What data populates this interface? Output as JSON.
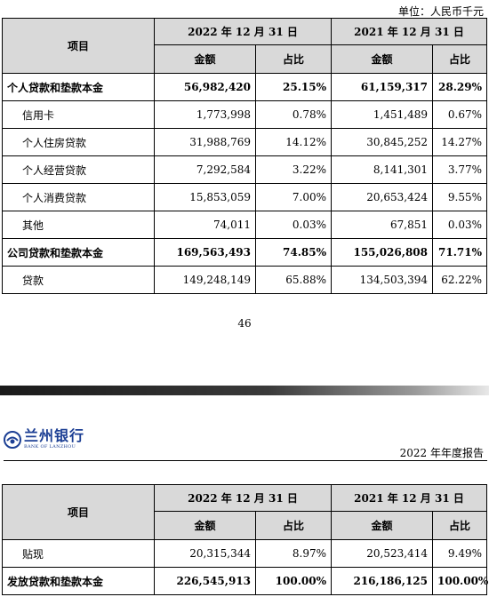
{
  "unit_note": "单位：人民币千元",
  "headers": {
    "item": "项目",
    "y2022": "2022 年 12 月 31 日",
    "y2021": "2021 年 12 月 31 日",
    "amount": "金额",
    "share": "占比"
  },
  "table1_rows": [
    {
      "label": "个人贷款和垫款本金",
      "a2022": "56,982,420",
      "p2022": "25.15%",
      "a2021": "61,159,317",
      "p2021": "28.29%"
    },
    {
      "label": "信用卡",
      "a2022": "1,773,998",
      "p2022": "0.78%",
      "a2021": "1,451,489",
      "p2021": "0.67%"
    },
    {
      "label": "个人住房贷款",
      "a2022": "31,988,769",
      "p2022": "14.12%",
      "a2021": "30,845,252",
      "p2021": "14.27%"
    },
    {
      "label": "个人经营贷款",
      "a2022": "7,292,584",
      "p2022": "3.22%",
      "a2021": "8,141,301",
      "p2021": "3.77%"
    },
    {
      "label": "个人消费贷款",
      "a2022": "15,853,059",
      "p2022": "7.00%",
      "a2021": "20,653,424",
      "p2021": "9.55%"
    },
    {
      "label": "其他",
      "a2022": "74,011",
      "p2022": "0.03%",
      "a2021": "67,851",
      "p2021": "0.03%"
    },
    {
      "label": "公司贷款和垫款本金",
      "a2022": "169,563,493",
      "p2022": "74.85%",
      "a2021": "155,026,808",
      "p2021": "71.71%"
    },
    {
      "label": "贷款",
      "a2022": "149,248,149",
      "p2022": "65.88%",
      "a2021": "134,503,394",
      "p2021": "62.22%"
    }
  ],
  "page_number": "46",
  "logo": {
    "cn": "兰州银行",
    "en": "BANK OF LANZHOU"
  },
  "report_title": "2022 年年度报告",
  "table2_rows": [
    {
      "label": "贴现",
      "a2022": "20,315,344",
      "p2022": "8.97%",
      "a2021": "20,523,414",
      "p2021": "9.49%"
    },
    {
      "label": "发放贷款和垫款本金",
      "a2022": "226,545,913",
      "p2022": "100.00%",
      "a2021": "216,186,125",
      "p2021": "100.00%"
    }
  ]
}
